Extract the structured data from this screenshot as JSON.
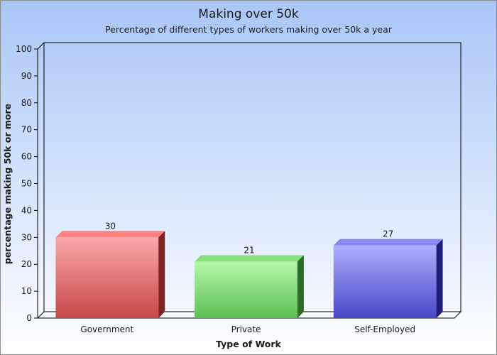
{
  "chart_data": {
    "type": "bar",
    "title": "Making over 50k",
    "subtitle": "Percentage of different types of workers making over 50k a year",
    "xlabel": "Type of Work",
    "ylabel": "percentage making 50k or more",
    "categories": [
      "Government",
      "Private",
      "Self-Employed"
    ],
    "values": [
      30,
      21,
      27
    ],
    "data_labels": [
      "30",
      "21",
      "27"
    ],
    "ylim": [
      0,
      100
    ],
    "yticks": [
      0,
      10,
      20,
      30,
      40,
      50,
      60,
      70,
      80,
      90,
      100
    ],
    "grid": false,
    "legend": "none",
    "bar_style": "3d",
    "colors": {
      "bars": [
        {
          "front_top": "#fba8a8",
          "front_bottom": "#c64848",
          "top": "#ff8080",
          "side": "#7e2222"
        },
        {
          "front_top": "#b4f7aa",
          "front_bottom": "#5dbf55",
          "top": "#8ae07f",
          "side": "#2c6b26"
        },
        {
          "front_top": "#aeaefc",
          "front_bottom": "#4848c8",
          "top": "#8888f0",
          "side": "#1f1f7a"
        }
      ],
      "axis": "#000000",
      "background_top": "#a9c6f7",
      "background_bottom": "#ffffff"
    }
  }
}
